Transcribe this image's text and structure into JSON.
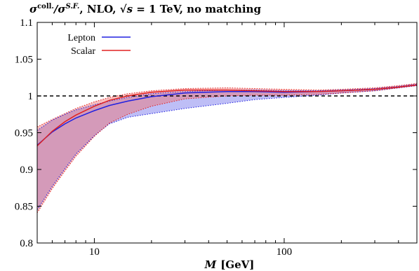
{
  "chart_data": {
    "type": "area",
    "title": {
      "prefix": "σ",
      "sup1": "coll.",
      "mid": "/σ",
      "sup2": "S.F.",
      "suffix1": ", NLO, ",
      "sqrt": "√s",
      "suffix2": " = 1 TeV, no matching"
    },
    "xlabel_var": "M",
    "xlabel_unit": "[GeV]",
    "xscale": "log",
    "xlim": [
      5,
      500
    ],
    "ylim": [
      0.8,
      1.1
    ],
    "xticks": [
      10,
      100
    ],
    "yticks": [
      0.8,
      0.85,
      0.9,
      0.95,
      1,
      1.05,
      1.1
    ],
    "ytick_labels": [
      "0.8",
      "0.85",
      "0.9",
      "0.95",
      "1",
      "1.05",
      "1.1"
    ],
    "reference_line": 1,
    "legend_position": "top-left",
    "series": [
      {
        "name": "Lepton",
        "color": "#2020e0",
        "band_color": "rgba(110,110,235,0.45)",
        "x": [
          5,
          6,
          7,
          8,
          10,
          12,
          15,
          20,
          30,
          50,
          70,
          100,
          150,
          200,
          300,
          400,
          500
        ],
        "y": [
          0.933,
          0.951,
          0.962,
          0.97,
          0.98,
          0.987,
          0.993,
          0.999,
          1.004,
          1.006,
          1.006,
          1.005,
          1.006,
          1.007,
          1.009,
          1.012,
          1.015
        ],
        "upper": [
          0.953,
          0.967,
          0.975,
          0.981,
          0.988,
          0.993,
          0.998,
          1.003,
          1.006,
          1.008,
          1.008,
          1.007,
          1.007,
          1.008,
          1.01,
          1.013,
          1.016
        ],
        "lower": [
          0.845,
          0.877,
          0.901,
          0.921,
          0.946,
          0.962,
          0.971,
          0.976,
          0.983,
          0.99,
          0.995,
          0.998,
          1.001,
          1.004,
          1.007,
          1.011,
          1.014
        ]
      },
      {
        "name": "Scalar",
        "color": "#e02020",
        "band_color": "rgba(240,110,110,0.45)",
        "x": [
          5,
          6,
          7,
          8,
          10,
          12,
          15,
          20,
          30,
          50,
          70,
          100,
          150,
          200,
          300,
          400,
          500
        ],
        "y": [
          0.932,
          0.952,
          0.965,
          0.974,
          0.986,
          0.994,
          1.0,
          1.005,
          1.008,
          1.008,
          1.007,
          1.006,
          1.006,
          1.007,
          1.009,
          1.012,
          1.015
        ],
        "upper": [
          0.958,
          0.968,
          0.976,
          0.983,
          0.992,
          0.998,
          1.003,
          1.007,
          1.01,
          1.011,
          1.01,
          1.009,
          1.008,
          1.009,
          1.011,
          1.014,
          1.017
        ],
        "lower": [
          0.841,
          0.874,
          0.898,
          0.918,
          0.945,
          0.963,
          0.975,
          0.986,
          0.996,
          1.0,
          1.001,
          1.001,
          1.002,
          1.004,
          1.007,
          1.011,
          1.014
        ]
      }
    ]
  }
}
